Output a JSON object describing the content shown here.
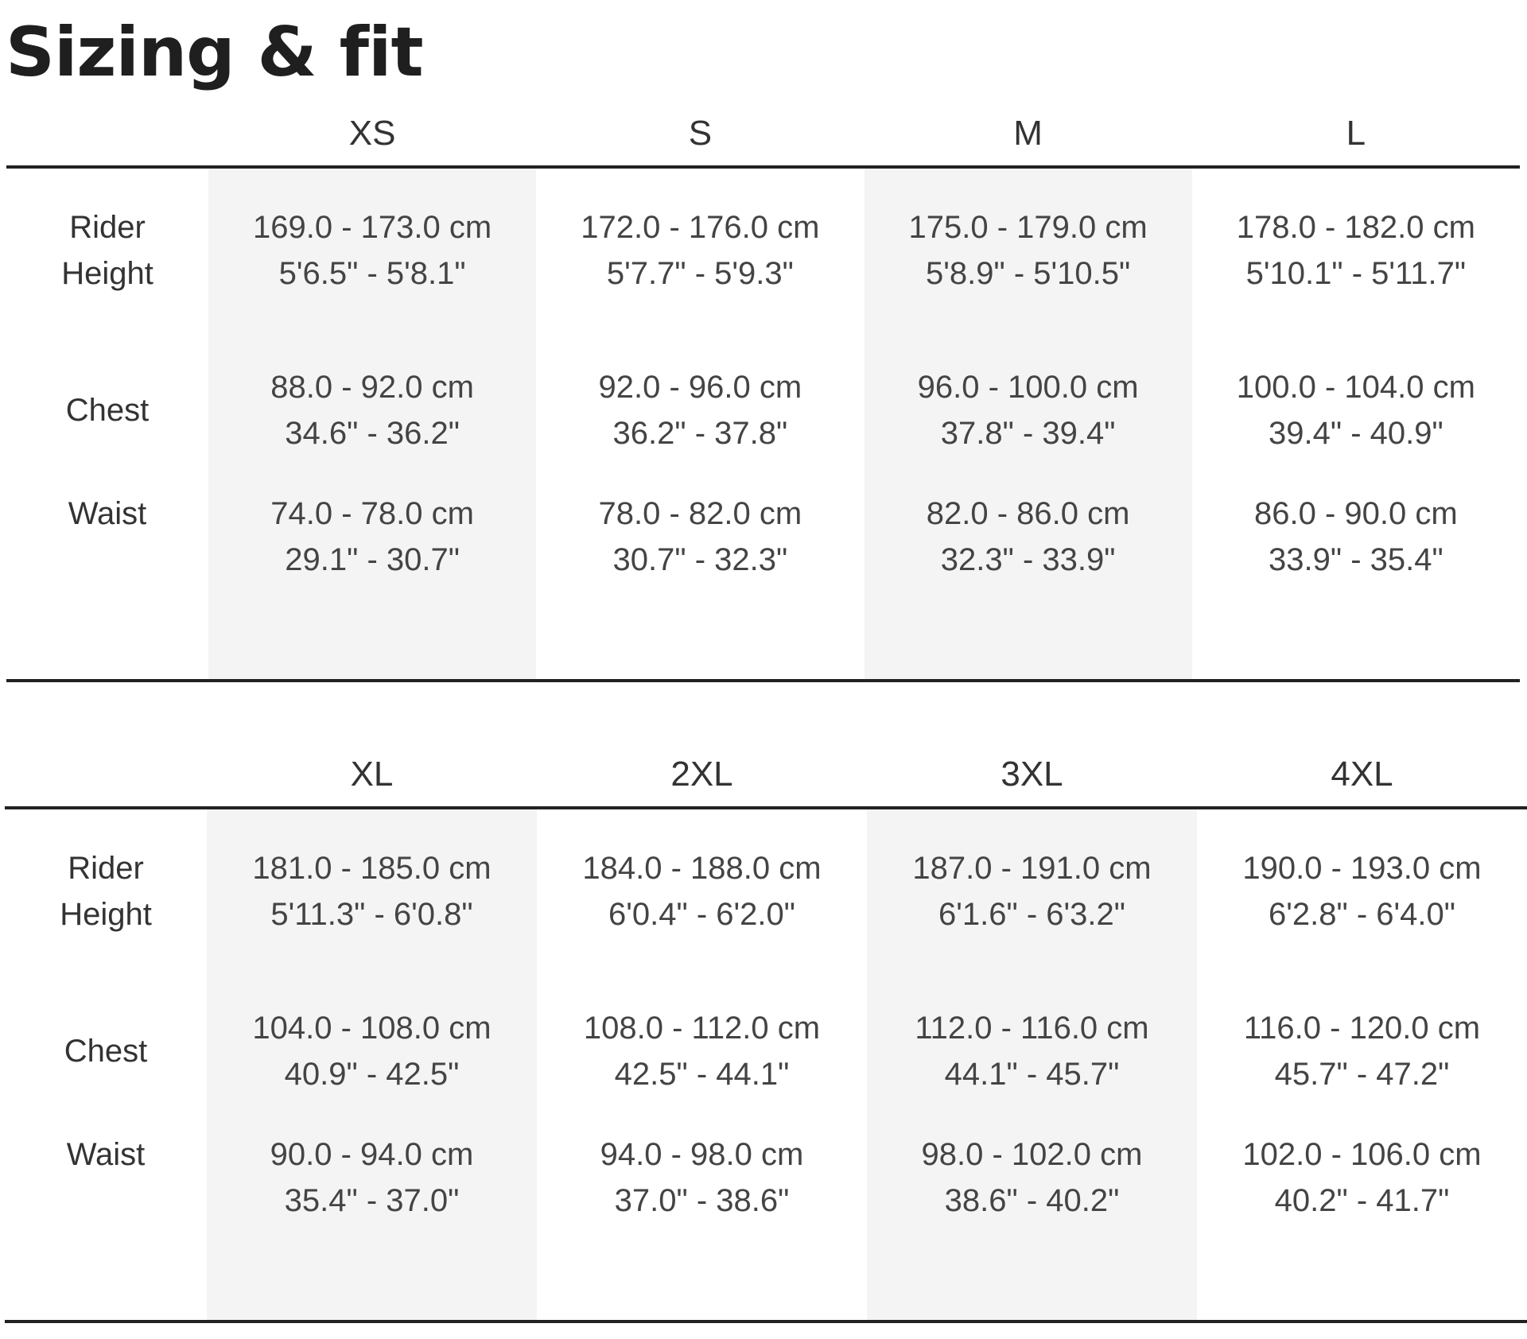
{
  "title": "Sizing & fit",
  "rows": [
    "Rider\nHeight",
    "Chest",
    "Waist"
  ],
  "table1": {
    "sizes": [
      "XS",
      "S",
      "M",
      "L"
    ],
    "cells": [
      [
        {
          "cm": "169.0 - 173.0 cm",
          "inch": "5'6.5\" - 5'8.1\""
        },
        {
          "cm": "172.0 - 176.0 cm",
          "inch": "5'7.7\" - 5'9.3\""
        },
        {
          "cm": "175.0 - 179.0 cm",
          "inch": "5'8.9\" - 5'10.5\""
        },
        {
          "cm": "178.0 - 182.0 cm",
          "inch": "5'10.1\" - 5'11.7\""
        }
      ],
      [
        {
          "cm": "88.0 - 92.0 cm",
          "inch": "34.6\" - 36.2\""
        },
        {
          "cm": "92.0 - 96.0 cm",
          "inch": "36.2\" - 37.8\""
        },
        {
          "cm": "96.0 - 100.0 cm",
          "inch": "37.8\" - 39.4\""
        },
        {
          "cm": "100.0 - 104.0 cm",
          "inch": "39.4\" - 40.9\""
        }
      ],
      [
        {
          "cm": "74.0 - 78.0 cm",
          "inch": "29.1\" - 30.7\""
        },
        {
          "cm": "78.0 - 82.0 cm",
          "inch": "30.7\" - 32.3\""
        },
        {
          "cm": "82.0 - 86.0 cm",
          "inch": "32.3\" - 33.9\""
        },
        {
          "cm": "86.0 - 90.0 cm",
          "inch": "33.9\" - 35.4\""
        }
      ]
    ]
  },
  "table2": {
    "sizes": [
      "XL",
      "2XL",
      "3XL",
      "4XL"
    ],
    "cells": [
      [
        {
          "cm": "181.0 - 185.0 cm",
          "inch": "5'11.3\" - 6'0.8\""
        },
        {
          "cm": "184.0 - 188.0 cm",
          "inch": "6'0.4\" - 6'2.0\""
        },
        {
          "cm": "187.0 - 191.0 cm",
          "inch": "6'1.6\" - 6'3.2\""
        },
        {
          "cm": "190.0 - 193.0 cm",
          "inch": "6'2.8\" - 6'4.0\""
        }
      ],
      [
        {
          "cm": "104.0 - 108.0 cm",
          "inch": "40.9\" - 42.5\""
        },
        {
          "cm": "108.0 - 112.0 cm",
          "inch": "42.5\" - 44.1\""
        },
        {
          "cm": "112.0 - 116.0 cm",
          "inch": "44.1\" - 45.7\""
        },
        {
          "cm": "116.0 - 120.0 cm",
          "inch": "45.7\" - 47.2\""
        }
      ],
      [
        {
          "cm": "90.0 - 94.0 cm",
          "inch": "35.4\" - 37.0\""
        },
        {
          "cm": "94.0 - 98.0 cm",
          "inch": "37.0\" - 38.6\""
        },
        {
          "cm": "98.0 - 102.0 cm",
          "inch": "38.6\" - 40.2\""
        },
        {
          "cm": "102.0 - 106.0 cm",
          "inch": "40.2\" - 41.7\""
        }
      ]
    ]
  },
  "colors": {
    "text": "#333333",
    "shade": "#f4f4f4",
    "rule": "#222222"
  }
}
